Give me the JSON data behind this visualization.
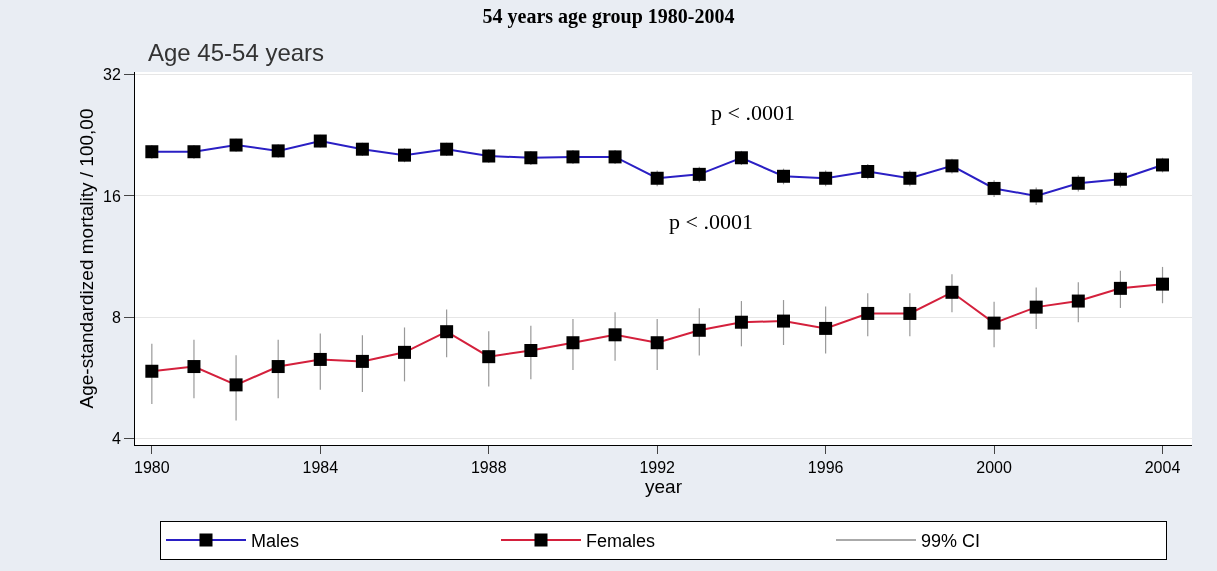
{
  "chart_data": {
    "type": "line",
    "title": "54 years age group 1980-2004",
    "subtitle": "Age 45-54 years",
    "xlabel": "year",
    "ylabel": "Age-standardized mortality / 100,00",
    "x": [
      1980,
      1981,
      1982,
      1983,
      1984,
      1985,
      1986,
      1987,
      1988,
      1989,
      1990,
      1991,
      1992,
      1993,
      1994,
      1995,
      1996,
      1997,
      1998,
      1999,
      2000,
      2001,
      2002,
      2003,
      2004
    ],
    "series": [
      {
        "name": "Males",
        "color": "#2a1fc4",
        "values": [
          20.6,
          20.6,
          21.4,
          20.7,
          21.9,
          20.9,
          20.2,
          20.9,
          20.1,
          19.9,
          20.0,
          20.0,
          17.7,
          18.1,
          19.9,
          17.9,
          17.7,
          18.4,
          17.7,
          19.0,
          16.7,
          16.0,
          17.2,
          17.6,
          19.1
        ],
        "errors": [
          0.8,
          0.8,
          0.8,
          0.8,
          0.8,
          0.8,
          0.8,
          0.8,
          0.8,
          0.8,
          0.8,
          0.8,
          0.8,
          0.8,
          0.8,
          0.8,
          0.8,
          0.8,
          0.8,
          0.8,
          0.8,
          0.8,
          0.8,
          0.8,
          0.8
        ]
      },
      {
        "name": "Females",
        "color": "#d4203c",
        "values": [
          5.87,
          6.03,
          5.43,
          6.03,
          6.28,
          6.21,
          6.54,
          7.36,
          6.38,
          6.61,
          6.91,
          7.23,
          6.91,
          7.42,
          7.77,
          7.82,
          7.5,
          8.17,
          8.17,
          9.22,
          7.73,
          8.47,
          8.77,
          9.43,
          9.66
        ],
        "errors": [
          1.0,
          1.0,
          1.0,
          1.0,
          1.0,
          1.0,
          1.0,
          1.0,
          1.0,
          1.0,
          1.0,
          1.0,
          1.0,
          1.0,
          1.0,
          1.0,
          1.0,
          1.0,
          1.0,
          1.0,
          1.0,
          1.0,
          1.0,
          1.0,
          1.0
        ]
      },
      {
        "name": "99% CI",
        "color": "#aaaaaa",
        "values": [
          null,
          null,
          null,
          null,
          null,
          null,
          null,
          null,
          null,
          null,
          null,
          null,
          null,
          null,
          null,
          null,
          null,
          null,
          null,
          null,
          null,
          null,
          null,
          null,
          null
        ]
      }
    ],
    "log": "y",
    "xlim": [
      1979.6,
      2004.7
    ],
    "xticks": [
      1980,
      1984,
      1988,
      1992,
      1996,
      2000,
      2004
    ],
    "ylim": [
      3.85,
      32.5
    ],
    "yticks": [
      4,
      8,
      16,
      32
    ],
    "grid": "y",
    "legend": "bottom",
    "marker": "square",
    "line_style": "solid",
    "annotations": [
      "p < .0001",
      "p < .0001"
    ]
  }
}
